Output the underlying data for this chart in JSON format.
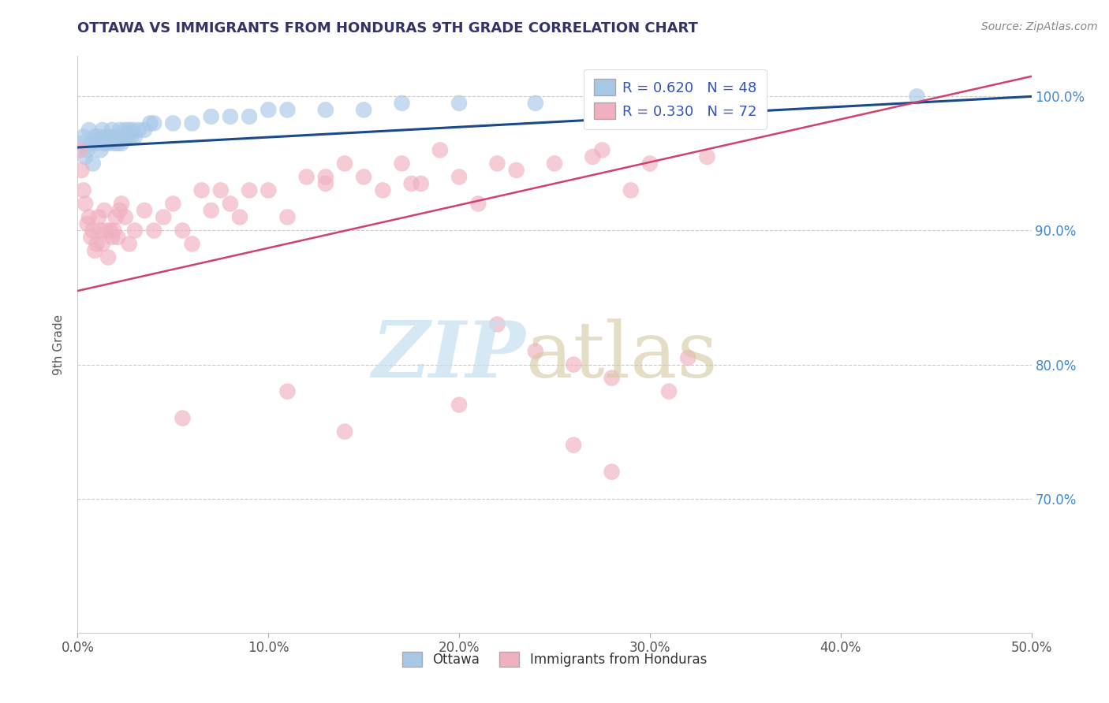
{
  "title": "OTTAWA VS IMMIGRANTS FROM HONDURAS 9TH GRADE CORRELATION CHART",
  "source_text": "Source: ZipAtlas.com",
  "ylabel": "9th Grade",
  "xlim": [
    0.0,
    50.0
  ],
  "ylim": [
    60.0,
    103.0
  ],
  "yticks": [
    70.0,
    80.0,
    90.0,
    100.0
  ],
  "ytick_labels": [
    "70.0%",
    "80.0%",
    "90.0%",
    "100.0%"
  ],
  "xticks": [
    0.0,
    10.0,
    20.0,
    30.0,
    40.0,
    50.0
  ],
  "xtick_labels": [
    "0.0%",
    "10.0%",
    "20.0%",
    "30.0%",
    "40.0%",
    "50.0%"
  ],
  "blue_R": 0.62,
  "blue_N": 48,
  "pink_R": 0.33,
  "pink_N": 72,
  "blue_color": "#a8c8e8",
  "pink_color": "#f0b0c0",
  "blue_line_color": "#1a4a8a",
  "pink_line_color": "#d04070",
  "legend_label_blue": "Ottawa",
  "legend_label_pink": "Immigrants from Honduras",
  "blue_scatter_x": [
    0.2,
    0.3,
    0.4,
    0.5,
    0.6,
    0.7,
    0.8,
    0.9,
    1.0,
    1.1,
    1.2,
    1.3,
    1.4,
    1.5,
    1.6,
    1.7,
    1.8,
    1.9,
    2.0,
    2.1,
    2.2,
    2.3,
    2.4,
    2.5,
    2.6,
    2.7,
    2.8,
    2.9,
    3.0,
    3.2,
    3.5,
    3.8,
    4.0,
    5.0,
    6.0,
    7.0,
    8.0,
    9.0,
    10.0,
    11.0,
    13.0,
    15.0,
    17.0,
    20.0,
    24.0,
    28.0,
    35.0,
    44.0
  ],
  "blue_scatter_y": [
    96.5,
    97.0,
    95.5,
    96.0,
    97.5,
    96.5,
    95.0,
    97.0,
    96.5,
    97.0,
    96.0,
    97.5,
    96.5,
    97.0,
    96.5,
    97.0,
    97.5,
    96.5,
    97.0,
    96.5,
    97.5,
    96.5,
    97.0,
    97.5,
    97.0,
    97.5,
    97.0,
    97.5,
    97.0,
    97.5,
    97.5,
    98.0,
    98.0,
    98.0,
    98.0,
    98.5,
    98.5,
    98.5,
    99.0,
    99.0,
    99.0,
    99.0,
    99.5,
    99.5,
    99.5,
    100.0,
    100.0,
    100.0
  ],
  "pink_scatter_x": [
    0.1,
    0.2,
    0.3,
    0.4,
    0.5,
    0.6,
    0.7,
    0.8,
    0.9,
    1.0,
    1.1,
    1.2,
    1.3,
    1.4,
    1.5,
    1.6,
    1.7,
    1.8,
    1.9,
    2.0,
    2.1,
    2.2,
    2.3,
    2.5,
    2.7,
    3.0,
    3.5,
    4.0,
    4.5,
    5.0,
    5.5,
    6.0,
    6.5,
    7.0,
    7.5,
    8.0,
    8.5,
    9.0,
    10.0,
    11.0,
    12.0,
    13.0,
    14.0,
    15.0,
    16.0,
    17.0,
    18.0,
    19.0,
    20.0,
    21.0,
    22.0,
    23.0,
    24.0,
    25.0,
    26.0,
    27.0,
    28.0,
    29.0,
    30.0,
    31.0,
    32.0,
    33.0,
    13.0,
    17.5,
    22.0,
    27.5,
    5.5,
    14.0,
    20.0,
    26.0,
    11.0,
    28.0
  ],
  "pink_scatter_y": [
    96.0,
    94.5,
    93.0,
    92.0,
    90.5,
    91.0,
    89.5,
    90.0,
    88.5,
    89.0,
    91.0,
    90.0,
    89.0,
    91.5,
    90.0,
    88.0,
    90.0,
    89.5,
    90.0,
    91.0,
    89.5,
    91.5,
    92.0,
    91.0,
    89.0,
    90.0,
    91.5,
    90.0,
    91.0,
    92.0,
    90.0,
    89.0,
    93.0,
    91.5,
    93.0,
    92.0,
    91.0,
    93.0,
    93.0,
    91.0,
    94.0,
    93.5,
    95.0,
    94.0,
    93.0,
    95.0,
    93.5,
    96.0,
    94.0,
    92.0,
    83.0,
    94.5,
    81.0,
    95.0,
    80.0,
    95.5,
    79.0,
    93.0,
    95.0,
    78.0,
    80.5,
    95.5,
    94.0,
    93.5,
    95.0,
    96.0,
    76.0,
    75.0,
    77.0,
    74.0,
    78.0,
    72.0
  ],
  "blue_trendline_x": [
    0.0,
    50.0
  ],
  "blue_trendline_y": [
    96.2,
    100.0
  ],
  "pink_trendline_x": [
    0.0,
    50.0
  ],
  "pink_trendline_y": [
    85.5,
    101.5
  ]
}
